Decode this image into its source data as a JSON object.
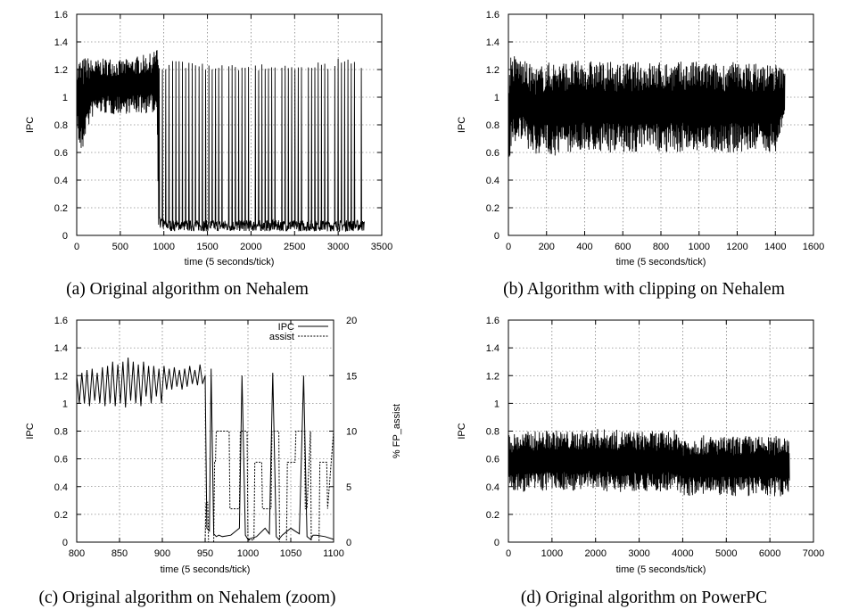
{
  "chart_data": [
    {
      "type": "line",
      "caption": "(a) Original algorithm on Nehalem",
      "xlabel": "time (5 seconds/tick)",
      "ylabel": "IPC",
      "xlim": [
        0,
        3500
      ],
      "ylim": [
        0,
        1.6
      ],
      "xticks": [
        "0",
        "500",
        "1000",
        "1500",
        "2000",
        "2500",
        "3000",
        "3500"
      ],
      "yticks": [
        "0",
        "0.2",
        "0.4",
        "0.6",
        "0.8",
        "1",
        "1.2",
        "1.4",
        "1.6"
      ],
      "grid": true,
      "series": [
        {
          "x": [
            0,
            30,
            60,
            100,
            200,
            300,
            400,
            500,
            600,
            700,
            800,
            880,
            900,
            920,
            940,
            960,
            1000,
            1100,
            1200,
            1300,
            1400,
            1500,
            1600,
            1700,
            1800,
            1900,
            2000,
            2100,
            2200,
            2300,
            2400,
            2500,
            2600,
            2700,
            2800,
            2900,
            3000,
            3100,
            3200,
            3300
          ],
          "upper": [
            1.22,
            1.3,
            1.28,
            1.3,
            1.27,
            1.28,
            1.29,
            1.27,
            1.28,
            1.3,
            1.31,
            1.32,
            1.35,
            1.43,
            1.25,
            1.2,
            1.22,
            1.27,
            1.26,
            1.25,
            1.26,
            1.24,
            1.25,
            1.26,
            1.25,
            1.24,
            1.25,
            1.24,
            1.25,
            1.25,
            1.24,
            1.25,
            1.25,
            1.24,
            1.26,
            1.25,
            1.28,
            1.3,
            1.25,
            1.2
          ],
          "lower": [
            0.8,
            0.6,
            0.55,
            0.72,
            0.88,
            0.88,
            0.87,
            0.88,
            0.88,
            0.88,
            0.88,
            0.88,
            0.88,
            0.88,
            0.05,
            0.05,
            0.04,
            0.03,
            0.03,
            0.03,
            0.03,
            0.03,
            0.03,
            0.03,
            0.03,
            0.03,
            0.03,
            0.03,
            0.03,
            0.03,
            0.03,
            0.03,
            0.03,
            0.03,
            0.03,
            0.03,
            0.03,
            0.03,
            0.03,
            0.03
          ]
        }
      ]
    },
    {
      "type": "line",
      "caption": "(b) Algorithm with clipping on Nehalem",
      "xlabel": "time (5 seconds/tick)",
      "ylabel": "IPC",
      "xlim": [
        0,
        1600
      ],
      "ylim": [
        0,
        1.6
      ],
      "xticks": [
        "0",
        "200",
        "400",
        "600",
        "800",
        "1000",
        "1200",
        "1400",
        "1600"
      ],
      "yticks": [
        "0",
        "0.2",
        "0.4",
        "0.6",
        "0.8",
        "1",
        "1.2",
        "1.4",
        "1.6"
      ],
      "grid": true,
      "series": [
        {
          "x": [
            0,
            10,
            50,
            100,
            150,
            200,
            250,
            300,
            400,
            500,
            600,
            700,
            800,
            900,
            1000,
            1100,
            1200,
            1300,
            1400,
            1450
          ],
          "upper": [
            1.1,
            1.32,
            1.3,
            1.25,
            1.22,
            1.25,
            1.27,
            1.26,
            1.27,
            1.26,
            1.25,
            1.26,
            1.26,
            1.26,
            1.26,
            1.25,
            1.26,
            1.25,
            1.25,
            1.2
          ],
          "lower": [
            0.45,
            0.6,
            0.7,
            0.62,
            0.58,
            0.6,
            0.57,
            0.6,
            0.6,
            0.6,
            0.6,
            0.6,
            0.6,
            0.6,
            0.6,
            0.6,
            0.6,
            0.6,
            0.6,
            0.8
          ]
        }
      ]
    },
    {
      "type": "line",
      "caption": "(c) Original algorithm on Nehalem (zoom)",
      "xlabel": "time (5 seconds/tick)",
      "ylabel": "IPC",
      "y2label": "% FP_assist",
      "xlim": [
        800,
        1100
      ],
      "ylim": [
        0,
        1.6
      ],
      "y2lim": [
        0,
        20
      ],
      "xticks": [
        "800",
        "850",
        "900",
        "950",
        "1000",
        "1050",
        "1100"
      ],
      "yticks": [
        "0",
        "0.2",
        "0.4",
        "0.6",
        "0.8",
        "1",
        "1.2",
        "1.4",
        "1.6"
      ],
      "y2ticks": [
        "0",
        "5",
        "10",
        "15",
        "20"
      ],
      "grid": true,
      "legend": "top-right",
      "series": [
        {
          "name": "IPC",
          "x": [
            800,
            803,
            806,
            809,
            812,
            815,
            818,
            821,
            824,
            827,
            830,
            833,
            836,
            839,
            842,
            845,
            848,
            851,
            854,
            857,
            860,
            863,
            866,
            869,
            872,
            875,
            878,
            881,
            884,
            887,
            890,
            893,
            896,
            899,
            902,
            905,
            908,
            911,
            914,
            917,
            920,
            923,
            926,
            929,
            932,
            935,
            938,
            941,
            944,
            947,
            950,
            952,
            955,
            957,
            960,
            963,
            966,
            970,
            980,
            990,
            993,
            997,
            1000,
            1010,
            1020,
            1025,
            1029,
            1033,
            1036,
            1040,
            1050,
            1060,
            1065,
            1069,
            1073,
            1076,
            1080,
            1090,
            1100
          ],
          "values": [
            1.2,
            1.0,
            1.22,
            1.0,
            1.24,
            0.98,
            1.25,
            1.02,
            1.22,
            1.0,
            1.26,
            0.98,
            1.27,
            1.0,
            1.3,
            0.98,
            1.28,
            1.0,
            1.3,
            0.97,
            1.33,
            1.02,
            1.3,
            1.0,
            1.28,
            0.98,
            1.3,
            1.05,
            1.27,
            1.0,
            1.27,
            1.05,
            1.25,
            1.0,
            1.27,
            1.1,
            1.25,
            1.1,
            1.26,
            1.12,
            1.24,
            1.1,
            1.25,
            1.12,
            1.27,
            1.14,
            1.24,
            1.13,
            1.28,
            1.14,
            1.2,
            0.1,
            0.08,
            1.25,
            0.06,
            0.04,
            0.05,
            0.04,
            0.05,
            0.1,
            1.2,
            0.05,
            0.02,
            0.04,
            0.1,
            0.06,
            1.22,
            0.04,
            0.02,
            0.05,
            0.1,
            0.06,
            1.2,
            0.04,
            0.02,
            0.05,
            0.05,
            0.04,
            0.02
          ]
        },
        {
          "name": "assist",
          "x": [
            800,
            950,
            951,
            953,
            954,
            960,
            961,
            962,
            963,
            978,
            979,
            990,
            991,
            999,
            1000,
            1001,
            1007,
            1008,
            1016,
            1017,
            1027,
            1028,
            1029,
            1036,
            1037,
            1045,
            1046,
            1055,
            1056,
            1066,
            1067,
            1069,
            1073,
            1074,
            1076,
            1083,
            1084,
            1092,
            1093,
            1100
          ],
          "values": [
            0,
            0,
            3.6,
            3.6,
            0,
            0,
            7.2,
            7.2,
            10,
            10,
            3,
            3,
            10,
            10,
            0,
            0.2,
            0.2,
            7.2,
            7.2,
            3,
            3,
            10,
            10,
            10,
            0,
            0,
            7.2,
            7.2,
            10,
            10,
            3,
            3,
            10,
            0,
            0,
            0,
            7.2,
            7.2,
            3,
            10
          ]
        }
      ]
    },
    {
      "type": "line",
      "caption": "(d) Original algorithm on PowerPC",
      "xlabel": "time (5 seconds/tick)",
      "ylabel": "IPC",
      "xlim": [
        0,
        7000
      ],
      "ylim": [
        0,
        1.6
      ],
      "xticks": [
        "0",
        "1000",
        "2000",
        "3000",
        "4000",
        "5000",
        "6000",
        "7000"
      ],
      "yticks": [
        "0",
        "0.2",
        "0.4",
        "0.6",
        "0.8",
        "1",
        "1.2",
        "1.4",
        "1.6"
      ],
      "grid": true,
      "series": [
        {
          "x": [
            0,
            500,
            1000,
            1500,
            2000,
            2500,
            3000,
            3500,
            3900,
            4000,
            4500,
            5000,
            5500,
            6000,
            6400,
            6450
          ],
          "upper": [
            0.78,
            0.8,
            0.81,
            0.8,
            0.82,
            0.81,
            0.8,
            0.8,
            0.81,
            0.76,
            0.77,
            0.76,
            0.77,
            0.76,
            0.78,
            0.75
          ],
          "lower": [
            0.36,
            0.36,
            0.37,
            0.37,
            0.37,
            0.36,
            0.37,
            0.36,
            0.36,
            0.33,
            0.34,
            0.33,
            0.33,
            0.33,
            0.33,
            0.4
          ]
        }
      ]
    }
  ]
}
